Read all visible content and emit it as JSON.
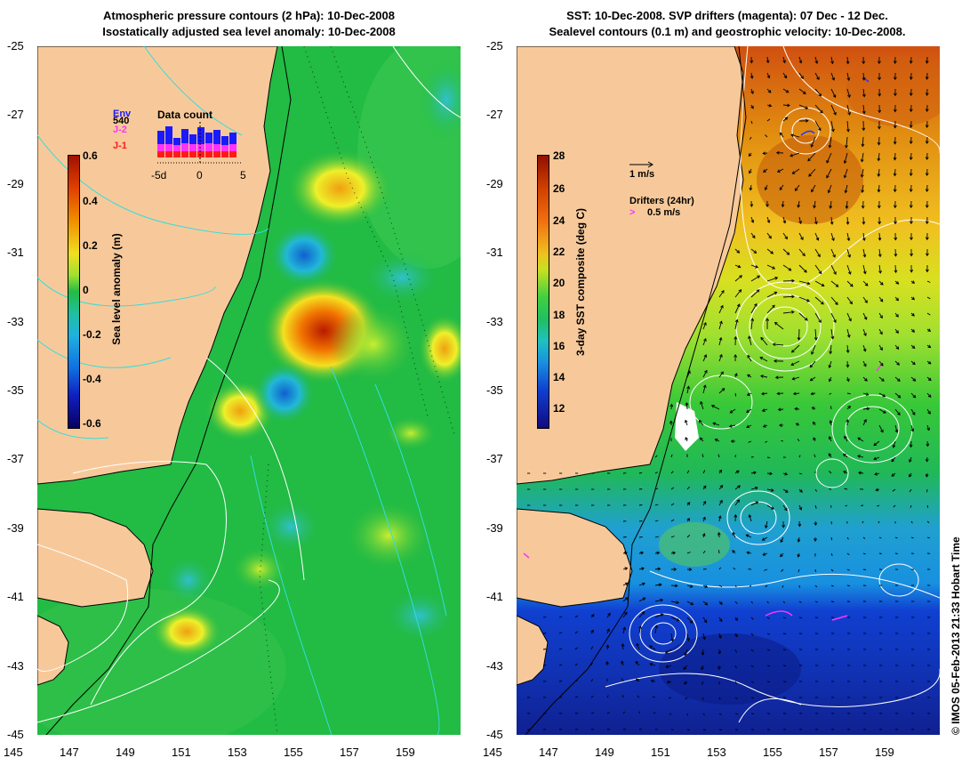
{
  "left_panel": {
    "title_line1": "Atmospheric pressure contours (2 hPa): 10-Dec-2008",
    "title_line2": "Isostatically adjusted sea level anomaly: 10-Dec-2008",
    "colorbar": {
      "label": "Sea level anomaly (m)",
      "ticks": [
        "0.6",
        "0.4",
        "0.2",
        "0",
        "-0.2",
        "-0.4",
        "-0.6"
      ]
    },
    "inset": {
      "title": "Data count",
      "max_count": "540",
      "legend": [
        "Env",
        "J-2",
        "J-1"
      ],
      "legend_colors": [
        "#1a1aff",
        "#ff33ff",
        "#ff1a1a"
      ],
      "x_ticks": [
        "-5d",
        "0",
        "5"
      ]
    }
  },
  "right_panel": {
    "title_line1": "SST: 10-Dec-2008. SVP drifters (magenta): 07 Dec - 12 Dec.",
    "title_line2": "Sealevel contours (0.1 m) and geostrophic velocity: 10-Dec-2008.",
    "colorbar": {
      "label": "3-day SST composite (deg C)",
      "ticks": [
        "28",
        "26",
        "24",
        "22",
        "20",
        "18",
        "16",
        "14",
        "12"
      ]
    },
    "velocity_scale": "1 m/s",
    "drifters_label": "Drifters (24hr)",
    "drifters_scale": "0.5 m/s"
  },
  "axes": {
    "lat_ticks": [
      "-25",
      "-27",
      "-29",
      "-31",
      "-33",
      "-35",
      "-37",
      "-39",
      "-41",
      "-43",
      "-45"
    ],
    "lon_ticks": [
      "145",
      "147",
      "149",
      "151",
      "153",
      "155",
      "157",
      "159"
    ]
  },
  "credit": "© IMOS 05-Feb-2013 21:33 Hobart Time",
  "colors": {
    "land": "#f7c99a",
    "sla_base": "#22bb44",
    "coast": "#000000",
    "contour": "#ffffff",
    "pressure_contour": "#33dddd"
  }
}
